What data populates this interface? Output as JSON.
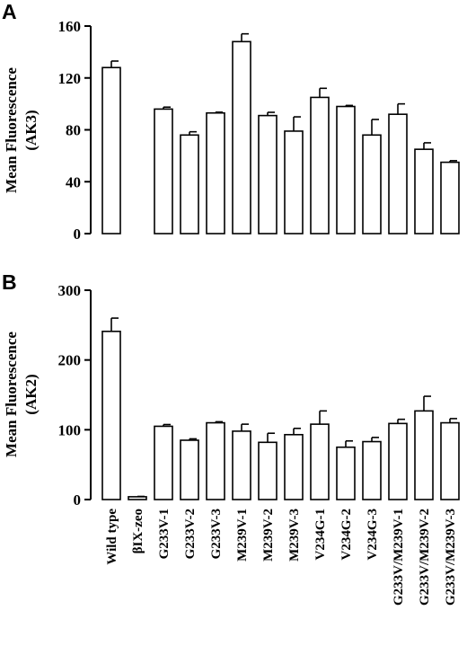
{
  "chart_data": [
    {
      "type": "bar",
      "panel": "A",
      "ylabel": [
        "Mean Fluorescence",
        "(AK3)"
      ],
      "ylim": [
        0,
        160
      ],
      "yticks": [
        0,
        40,
        80,
        120,
        160
      ],
      "categories": [
        "Wild type",
        "βIX-zeo",
        "G233V-1",
        "G233V-2",
        "G233V-3",
        "M239V-1",
        "M239V-2",
        "M239V-3",
        "V234G-1",
        "V234G-2",
        "V234G-3",
        "G233V/M239V-1",
        "G233V/M239V-2",
        "G233V/M239V-3"
      ],
      "values": [
        128,
        null,
        96,
        76,
        93,
        148,
        91,
        79,
        105,
        98,
        76,
        92,
        65,
        55
      ],
      "errors": [
        5,
        null,
        1.5,
        2.5,
        0.6,
        6,
        2.5,
        11,
        7,
        0.8,
        12,
        8,
        5,
        1.2
      ],
      "grid": false
    },
    {
      "type": "bar",
      "panel": "B",
      "ylabel": [
        "Mean Fluorescence",
        "(AK2)"
      ],
      "ylim": [
        0,
        300
      ],
      "yticks": [
        0,
        100,
        200,
        300
      ],
      "categories": [
        "Wild type",
        "βIX-zeo",
        "G233V-1",
        "G233V-2",
        "G233V-3",
        "M239V-1",
        "M239V-2",
        "M239V-3",
        "V234G-1",
        "V234G-2",
        "V234G-3",
        "G233V/M239V-1",
        "G233V/M239V-2",
        "G233V/M239V-3"
      ],
      "values": [
        241,
        4,
        105,
        85,
        110,
        98,
        82,
        93,
        108,
        75,
        83,
        109,
        127,
        110
      ],
      "errors": [
        19,
        0.5,
        2.5,
        2,
        1.5,
        10,
        13,
        9,
        19,
        9,
        6,
        6,
        21,
        6
      ],
      "grid": false
    }
  ]
}
